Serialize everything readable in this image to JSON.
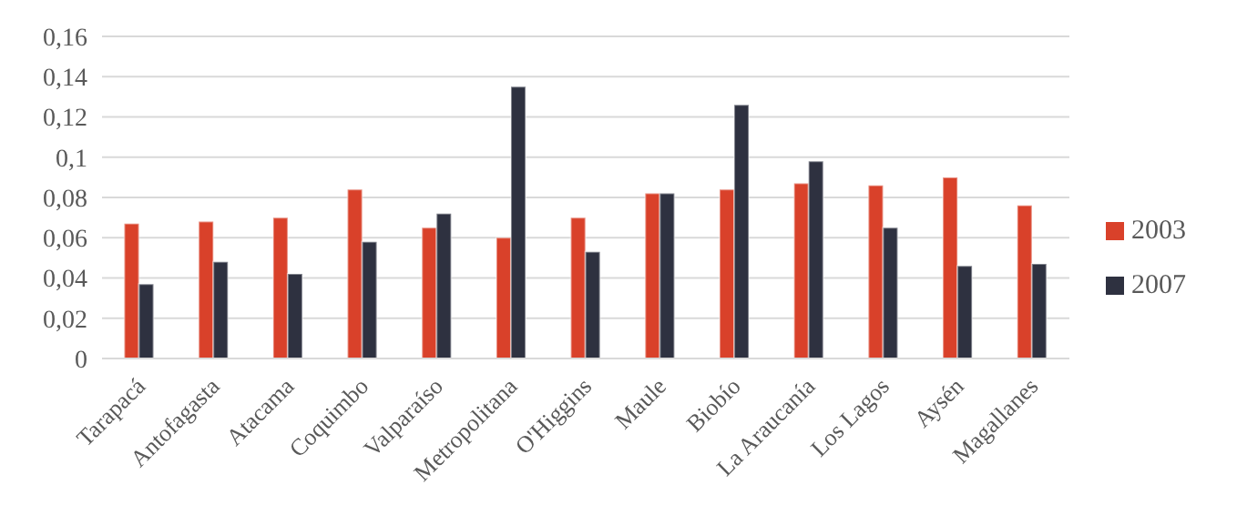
{
  "chart_data": {
    "type": "bar",
    "categories": [
      "Tarapacá",
      "Antofagasta",
      "Atacama",
      "Coquimbo",
      "Valparaíso",
      "Metropolitana",
      "O'Higgins",
      "Maule",
      "Biobío",
      "La Araucanía",
      "Los Lagos",
      "Aysén",
      "Magallanes"
    ],
    "series": [
      {
        "name": "2003",
        "color": "#d9412a",
        "values": [
          0.067,
          0.068,
          0.07,
          0.084,
          0.065,
          0.06,
          0.07,
          0.082,
          0.084,
          0.087,
          0.086,
          0.09,
          0.076
        ]
      },
      {
        "name": "2007",
        "color": "#2e3140",
        "values": [
          0.037,
          0.048,
          0.042,
          0.058,
          0.072,
          0.135,
          0.053,
          0.082,
          0.126,
          0.098,
          0.065,
          0.046,
          0.047
        ]
      }
    ],
    "ylim": [
      0,
      0.16
    ],
    "yticks": [
      0,
      {
        "value": 0.02,
        "label": "0,02"
      },
      {
        "value": 0.04,
        "label": "0,04"
      },
      {
        "value": 0.06,
        "label": "0,06"
      },
      {
        "value": 0.08,
        "label": "0,08"
      },
      {
        "value": 0.1,
        "label": "0,1"
      },
      {
        "value": 0.12,
        "label": "0,12"
      },
      {
        "value": 0.14,
        "label": "0,14"
      },
      {
        "value": 0.16,
        "label": "0,16"
      }
    ],
    "grid": "y",
    "legend": "right"
  }
}
